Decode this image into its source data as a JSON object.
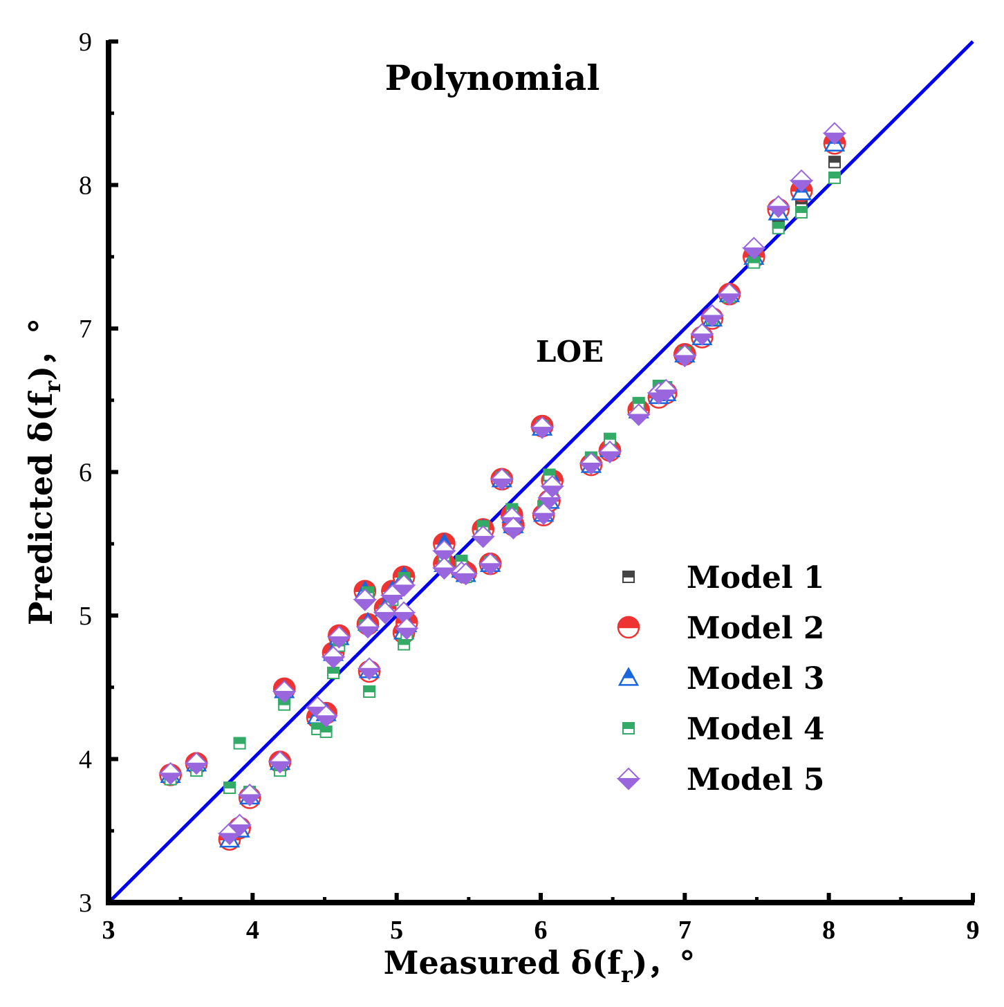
{
  "chart_data": {
    "type": "scatter",
    "title": "Polynomial",
    "xlabel": "Measured δ(f",
    "xlabel_sub": "r",
    "xlabel_tail": ")，°",
    "ylabel": "Predicted δ(f",
    "ylabel_sub": "r",
    "ylabel_tail": ")，°",
    "xlim": [
      3,
      9
    ],
    "ylim": [
      3,
      9
    ],
    "xticks": [
      "3",
      "4",
      "5",
      "6",
      "7",
      "8",
      "9"
    ],
    "yticks": [
      "3",
      "4",
      "5",
      "6",
      "7",
      "8",
      "9"
    ],
    "annotation": "LOE",
    "reference_line": {
      "x": [
        3,
        9
      ],
      "y": [
        3,
        9
      ],
      "color": "#0000ee"
    },
    "legend_position": "right-middle",
    "series": [
      {
        "name": "Model 1",
        "marker": "square-half",
        "color": "#444444",
        "x": [
          3.43,
          3.61,
          3.84,
          3.91,
          3.98,
          4.19,
          4.22,
          4.45,
          4.51,
          4.56,
          4.6,
          4.78,
          4.8,
          4.81,
          4.92,
          4.97,
          5.05,
          5.05,
          5.07,
          5.33,
          5.33,
          5.45,
          5.48,
          5.6,
          5.65,
          5.73,
          5.8,
          5.81,
          6.01,
          6.02,
          6.06,
          6.08,
          6.35,
          6.48,
          6.68,
          6.82,
          6.87,
          7.0,
          7.12,
          7.19,
          7.31,
          7.48,
          7.65,
          7.81,
          8.04
        ],
        "y": [
          3.88,
          3.95,
          3.44,
          3.5,
          3.75,
          3.96,
          4.48,
          4.3,
          4.33,
          4.75,
          4.84,
          5.16,
          4.95,
          4.63,
          5.04,
          5.16,
          5.28,
          4.9,
          4.92,
          5.5,
          5.36,
          5.33,
          5.28,
          5.6,
          5.36,
          5.95,
          5.69,
          5.62,
          6.31,
          5.72,
          5.8,
          5.96,
          6.05,
          6.16,
          6.44,
          6.53,
          6.55,
          6.83,
          6.93,
          7.06,
          7.24,
          7.48,
          7.73,
          7.87,
          8.16
        ]
      },
      {
        "name": "Model 2",
        "marker": "circle-half",
        "color": "#ee3333",
        "x": [
          3.43,
          3.61,
          3.84,
          3.91,
          3.98,
          4.19,
          4.22,
          4.45,
          4.51,
          4.56,
          4.6,
          4.78,
          4.8,
          4.81,
          4.92,
          4.97,
          5.05,
          5.05,
          5.07,
          5.33,
          5.33,
          5.45,
          5.48,
          5.6,
          5.65,
          5.73,
          5.8,
          5.81,
          6.01,
          6.02,
          6.06,
          6.08,
          6.35,
          6.48,
          6.68,
          6.82,
          6.87,
          7.0,
          7.12,
          7.19,
          7.31,
          7.48,
          7.65,
          7.81,
          8.04
        ],
        "y": [
          3.89,
          3.97,
          3.44,
          3.52,
          3.73,
          3.98,
          4.49,
          4.29,
          4.32,
          4.74,
          4.86,
          5.17,
          4.94,
          4.61,
          5.05,
          5.17,
          5.27,
          4.88,
          4.95,
          5.5,
          5.36,
          5.32,
          5.3,
          5.6,
          5.36,
          5.95,
          5.7,
          5.63,
          6.32,
          5.7,
          5.8,
          5.94,
          6.05,
          6.15,
          6.43,
          6.52,
          6.55,
          6.82,
          6.94,
          7.07,
          7.24,
          7.5,
          7.83,
          7.96,
          8.29
        ]
      },
      {
        "name": "Model 3",
        "marker": "triangle-half",
        "color": "#1a66dd",
        "x": [
          3.43,
          3.61,
          3.84,
          3.91,
          3.98,
          4.19,
          4.22,
          4.45,
          4.51,
          4.56,
          4.6,
          4.78,
          4.8,
          4.81,
          4.92,
          4.97,
          5.05,
          5.05,
          5.07,
          5.33,
          5.33,
          5.45,
          5.48,
          5.6,
          5.65,
          5.73,
          5.8,
          5.81,
          6.01,
          6.02,
          6.06,
          6.08,
          6.35,
          6.48,
          6.68,
          6.82,
          6.87,
          7.0,
          7.12,
          7.19,
          7.31,
          7.48,
          7.65,
          7.81,
          8.04
        ],
        "y": [
          3.89,
          3.97,
          3.44,
          3.51,
          3.74,
          3.98,
          4.48,
          4.3,
          4.32,
          4.74,
          4.85,
          5.17,
          4.95,
          4.62,
          5.05,
          5.17,
          5.27,
          4.89,
          4.94,
          5.5,
          5.36,
          5.32,
          5.29,
          5.6,
          5.36,
          5.95,
          5.7,
          5.63,
          6.31,
          5.71,
          5.8,
          5.95,
          6.05,
          6.16,
          6.43,
          6.53,
          6.55,
          6.82,
          6.94,
          7.07,
          7.24,
          7.5,
          7.81,
          7.95,
          8.29
        ]
      },
      {
        "name": "Model 4",
        "marker": "square-half",
        "color": "#33aa66",
        "x": [
          3.43,
          3.61,
          3.84,
          3.91,
          3.98,
          4.19,
          4.22,
          4.45,
          4.51,
          4.56,
          4.6,
          4.78,
          4.8,
          4.81,
          4.92,
          4.97,
          5.05,
          5.05,
          5.07,
          5.33,
          5.33,
          5.45,
          5.48,
          5.6,
          5.65,
          5.73,
          5.8,
          5.81,
          6.01,
          6.02,
          6.06,
          6.08,
          6.35,
          6.48,
          6.68,
          6.82,
          6.87,
          7.0,
          7.12,
          7.19,
          7.31,
          7.48,
          7.65,
          7.81,
          8.04
        ],
        "y": [
          3.86,
          3.92,
          3.8,
          4.11,
          3.77,
          3.92,
          4.38,
          4.21,
          4.19,
          4.6,
          4.79,
          4.93,
          5.16,
          4.47,
          5.03,
          5.11,
          5.26,
          4.8,
          4.87,
          5.42,
          5.34,
          5.38,
          5.27,
          5.62,
          5.37,
          5.96,
          5.74,
          5.63,
          6.32,
          5.76,
          5.98,
          5.89,
          6.1,
          6.23,
          6.48,
          6.6,
          6.59,
          6.83,
          6.96,
          7.07,
          7.22,
          7.46,
          7.7,
          7.81,
          8.05
        ]
      },
      {
        "name": "Model 5",
        "marker": "diamond-half",
        "color": "#9966dd",
        "x": [
          3.43,
          3.61,
          3.84,
          3.91,
          3.98,
          4.19,
          4.22,
          4.45,
          4.51,
          4.56,
          4.6,
          4.78,
          4.8,
          4.81,
          4.92,
          4.97,
          5.05,
          5.05,
          5.07,
          5.33,
          5.33,
          5.45,
          5.48,
          5.6,
          5.65,
          5.73,
          5.8,
          5.81,
          6.01,
          6.02,
          6.06,
          6.08,
          6.35,
          6.48,
          6.68,
          6.82,
          6.87,
          7.0,
          7.12,
          7.19,
          7.31,
          7.48,
          7.65,
          7.81,
          8.04
        ],
        "y": [
          3.9,
          3.97,
          3.48,
          3.54,
          3.75,
          3.98,
          4.47,
          4.36,
          4.3,
          4.71,
          4.85,
          5.11,
          4.92,
          4.63,
          5.02,
          5.14,
          5.21,
          5.02,
          4.91,
          5.45,
          5.33,
          5.3,
          5.29,
          5.55,
          5.36,
          5.95,
          5.68,
          5.61,
          6.31,
          5.71,
          5.82,
          5.9,
          6.06,
          6.14,
          6.4,
          6.55,
          6.57,
          6.81,
          6.96,
          7.09,
          7.24,
          7.56,
          7.85,
          8.03,
          8.36
        ]
      }
    ]
  }
}
